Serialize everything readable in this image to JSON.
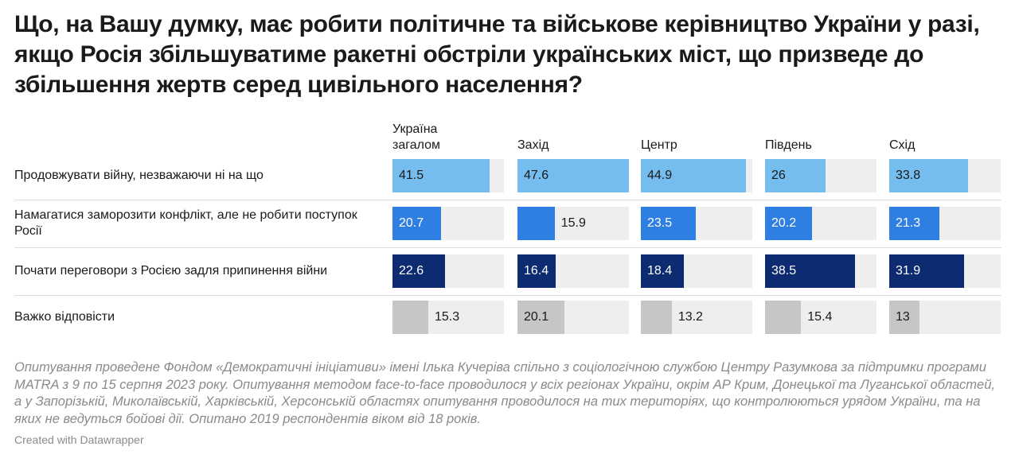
{
  "chart_data": {
    "type": "bar",
    "title": "Що, на Вашу думку, має робити політичне та військове керівництво України у разі, якщо Росія збільшуватиме ракетні обстріли українських міст, що призведе до збільшення жертв серед цивільного населення?",
    "categories": [
      "Продовжувати війну, незважаючи ні на що",
      "Намагатися заморозити конфлікт, але не робити поступок Росії",
      "Почати переговори з Росією задля припинення війни",
      "Важко відповісти"
    ],
    "category_colors": [
      "#74bdee",
      "#2f7fe2",
      "#0d2b70",
      "#c6c6c6"
    ],
    "label_colors": [
      "#1a1a1a",
      "#ffffff",
      "#ffffff",
      "#1a1a1a"
    ],
    "series": [
      {
        "name": "Україна загалом",
        "values": [
          41.5,
          20.7,
          22.6,
          15.3
        ]
      },
      {
        "name": "Захід",
        "values": [
          47.6,
          15.9,
          16.4,
          20.1
        ]
      },
      {
        "name": "Центр",
        "values": [
          44.9,
          23.5,
          18.4,
          13.2
        ]
      },
      {
        "name": "Південь",
        "values": [
          26,
          20.2,
          38.5,
          15.4
        ]
      },
      {
        "name": "Схід",
        "values": [
          33.8,
          21.3,
          31.9,
          13
        ]
      }
    ],
    "notes": "Опитування проведене Фондом «Демократичні ініціативи» імені Ілька Кучеріва спільно з соціологічною службою Центру Разумкова за підтримки програми MATRA  з 9  по 15 серпня 2023 року. Опитування методом face-to-face проводилося у всіх регіонах України, окрім АР Крим, Донецької та Луганської областей, а у Запорізькій, Миколаївській, Харківській, Херсонській областях опитування проводилося на тих територіях, що контролюються урядом України, та на яких не ведуться бойові дії. Опитано 2019 респондентів віком від 18 років.",
    "credit": "Created with Datawrapper"
  }
}
